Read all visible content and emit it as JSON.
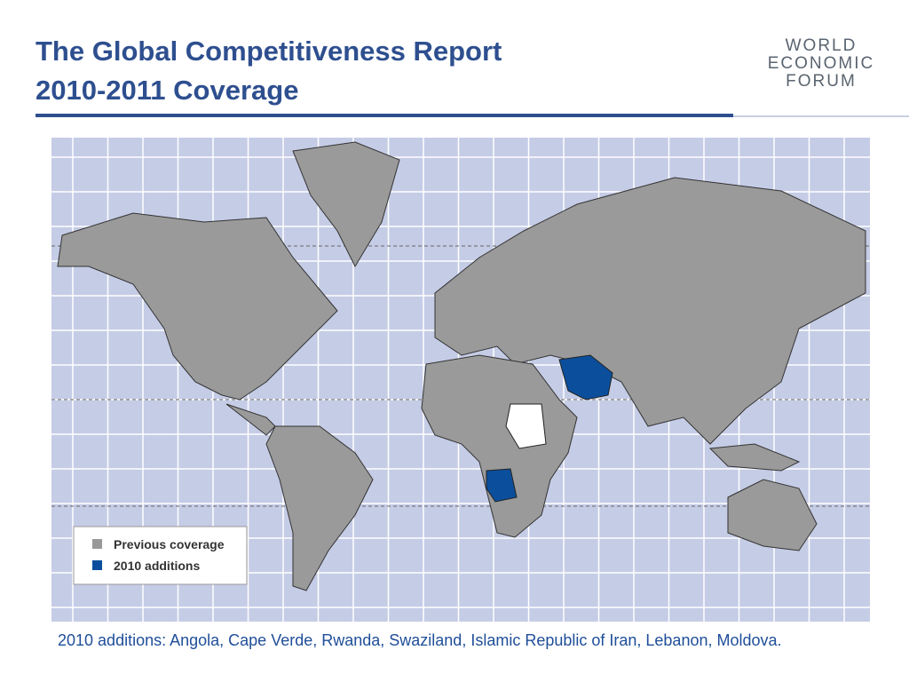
{
  "header": {
    "title_lines": [
      "The Global Competitiveness Report",
      "2010-2011 Coverage"
    ],
    "logo": [
      "WORLD",
      "ECONOMIC",
      "FORUM"
    ]
  },
  "legend": [
    {
      "label": "Previous coverage",
      "color": "#999999"
    },
    {
      "label": "2010 additions",
      "color": "#0b4f9c"
    }
  ],
  "caption": "2010 additions: Angola, Cape Verde, Rwanda, Swaziland, Islamic Republic of Iran, Lebanon, Moldova."
}
